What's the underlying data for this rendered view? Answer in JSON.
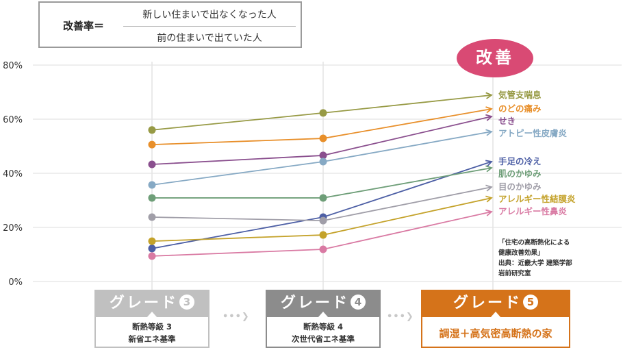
{
  "formula": {
    "lhs": "改善率＝",
    "numerator": "新しい住まいで出なくなった人",
    "denominator": "前の住まいで出ていた人"
  },
  "badge": {
    "label": "改善",
    "color": "#d94a74"
  },
  "source_note": [
    "「住宅の高断熱化による",
    "健康改善効果」",
    "出典：近畿大学 建築学部",
    "岩前研究室"
  ],
  "grades": [
    {
      "name": "グレード",
      "number": "3",
      "lines": [
        "断熱等級 3",
        "新省エネ基準"
      ],
      "color": "#c0c0c0"
    },
    {
      "name": "グレード",
      "number": "4",
      "lines": [
        "断熱等級 4",
        "次世代省エネ基準"
      ],
      "color": "#8c8c8c"
    },
    {
      "name": "グレード",
      "number": "5",
      "lines": [
        "調湿＋高気密高断熱の家"
      ],
      "color": "#d5731a"
    }
  ],
  "flow_arrows": [
    "•••❯",
    "•••❯"
  ],
  "chart_data": {
    "type": "line",
    "title": "改善率",
    "xlabel": "",
    "ylabel": "",
    "categories": [
      "グレード3",
      "グレード4",
      "グレード5"
    ],
    "ylim": [
      0,
      80
    ],
    "yticks": [
      0,
      20,
      40,
      60,
      80
    ],
    "ytick_labels": [
      "0%",
      "20%",
      "40%",
      "60%",
      "80%"
    ],
    "grid": true,
    "series": [
      {
        "name": "気管支喘息",
        "color": "#979a45",
        "values": [
          56.0,
          62.3,
          68.9
        ]
      },
      {
        "name": "のどの痛み",
        "color": "#e88f2a",
        "values": [
          50.6,
          52.9,
          63.8
        ]
      },
      {
        "name": "せき",
        "color": "#8a4f8e",
        "values": [
          43.3,
          46.6,
          61.0
        ]
      },
      {
        "name": "アトピー性皮膚炎",
        "color": "#86a9c4",
        "values": [
          35.7,
          44.3,
          55.4
        ]
      },
      {
        "name": "手足の冷え",
        "color": "#4d5fa5",
        "values": [
          12.2,
          23.8,
          44.3
        ]
      },
      {
        "name": "肌のかゆみ",
        "color": "#6e9e78",
        "values": [
          30.9,
          30.9,
          42.0
        ]
      },
      {
        "name": "目のかゆみ",
        "color": "#a09ea8",
        "values": [
          23.8,
          22.5,
          34.9
        ]
      },
      {
        "name": "アレルギー性結膜炎",
        "color": "#c4a22a",
        "values": [
          14.9,
          17.2,
          30.9
        ]
      },
      {
        "name": "アレルギー性鼻炎",
        "color": "#d97aa3",
        "values": [
          9.4,
          11.9,
          25.8
        ]
      }
    ],
    "label_order": [
      "気管支喘息",
      "のどの痛み",
      "せき",
      "アトピー性皮膚炎",
      "手足の冷え",
      "肌のかゆみ",
      "目のかゆみ",
      "アレルギー性結膜炎",
      "アレルギー性鼻炎"
    ]
  }
}
